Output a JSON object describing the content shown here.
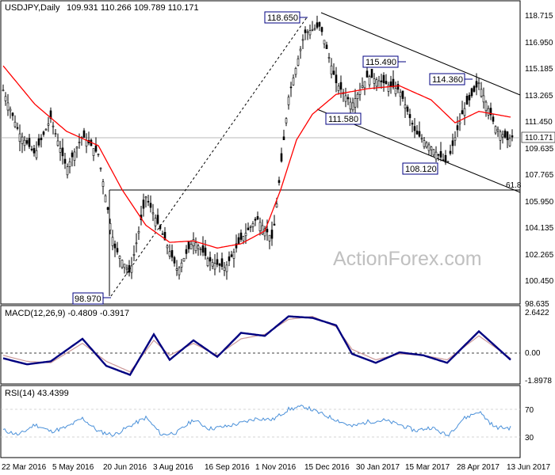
{
  "chart_data": [
    {
      "type": "candlestick",
      "title": "USDJPY,Daily",
      "ohlc_label": "109.931 110.266 109.789 110.171",
      "y_ticks": [
        "118.715",
        "116.950",
        "115.185",
        "113.265",
        "111.450",
        "109.635",
        "107.765",
        "105.950",
        "104.135",
        "102.265",
        "100.450",
        "98.635"
      ],
      "last_price": "110.171",
      "watermark": "ActionForex.com",
      "annotations": {
        "high_1": "118.650",
        "high_2": "115.490",
        "high_3": "114.360",
        "low_1": "111.580",
        "low_2": "108.120",
        "low_0": "98.970",
        "fib": "61.8"
      },
      "series": [
        {
          "name": "price",
          "x": [
            0,
            20,
            40,
            60,
            80,
            100,
            120,
            140,
            160,
            180,
            200,
            220,
            240,
            260,
            280,
            300,
            320,
            340,
            360,
            380,
            400,
            420,
            440,
            460,
            480,
            500,
            520,
            540,
            560,
            580,
            600,
            620,
            636,
            642
          ],
          "values": [
            113.5,
            110.5,
            109.0,
            111.5,
            108.0,
            110.3,
            109.0,
            102.5,
            100.6,
            106.0,
            103.5,
            100.8,
            103.0,
            101.5,
            101.0,
            103.0,
            104.5,
            103.0,
            113.0,
            117.5,
            118.0,
            114.0,
            112.5,
            114.5,
            114.0,
            113.5,
            110.5,
            109.5,
            108.3,
            112.0,
            114.0,
            111.0,
            110.0,
            110.2
          ]
        },
        {
          "name": "ma",
          "x": [
            0,
            40,
            80,
            120,
            150,
            180,
            210,
            240,
            270,
            300,
            330,
            350,
            370,
            390,
            420,
            460,
            500,
            540,
            570,
            600,
            640
          ],
          "values": [
            115.2,
            112.5,
            110.6,
            109.6,
            106.5,
            104.0,
            102.8,
            102.9,
            102.4,
            102.7,
            103.6,
            106.5,
            110.0,
            111.8,
            113.2,
            113.6,
            113.8,
            112.8,
            111.2,
            112.0,
            111.6
          ]
        }
      ]
    },
    {
      "type": "line",
      "title": "MACD(12,26,9) -0.4809 -0.3917",
      "y_ticks": [
        "2.6422",
        "0.00",
        "-1.8978"
      ],
      "series": [
        {
          "name": "macd",
          "x": [
            0,
            30,
            60,
            100,
            130,
            160,
            190,
            210,
            240,
            270,
            300,
            330,
            360,
            390,
            420,
            440,
            470,
            500,
            530,
            560,
            600,
            640
          ],
          "values": [
            -0.4,
            -0.8,
            -0.6,
            0.9,
            -0.9,
            -1.5,
            1.2,
            -0.5,
            0.8,
            -0.3,
            1.3,
            1.1,
            2.4,
            2.3,
            1.8,
            -0.1,
            -0.7,
            0.0,
            -0.2,
            -0.7,
            1.4,
            -0.5
          ]
        },
        {
          "name": "signal",
          "x": [
            0,
            30,
            60,
            100,
            130,
            160,
            190,
            210,
            240,
            270,
            300,
            330,
            360,
            390,
            420,
            440,
            470,
            500,
            530,
            560,
            600,
            640
          ],
          "values": [
            -0.2,
            -0.6,
            -0.7,
            0.6,
            -0.6,
            -1.3,
            0.8,
            -0.2,
            0.6,
            -0.2,
            0.9,
            1.2,
            2.2,
            2.4,
            1.7,
            0.2,
            -0.5,
            -0.1,
            -0.2,
            -0.5,
            1.1,
            -0.4
          ]
        }
      ]
    },
    {
      "type": "line",
      "title": "RSI(14) 43.4399",
      "y_ticks": [
        "70",
        "30"
      ],
      "series": [
        {
          "name": "rsi",
          "x": [
            0,
            20,
            40,
            60,
            80,
            100,
            120,
            140,
            160,
            180,
            200,
            220,
            240,
            260,
            280,
            300,
            320,
            340,
            360,
            380,
            400,
            420,
            440,
            460,
            480,
            500,
            520,
            540,
            560,
            580,
            600,
            620,
            640
          ],
          "values": [
            40,
            33,
            48,
            38,
            44,
            57,
            38,
            33,
            46,
            58,
            33,
            37,
            55,
            42,
            45,
            50,
            57,
            55,
            70,
            74,
            64,
            55,
            45,
            52,
            54,
            48,
            39,
            44,
            32,
            56,
            67,
            44,
            43
          ]
        }
      ]
    }
  ],
  "x_axis": {
    "tick_labels": [
      "22 Mar 2016",
      "5 May 2016",
      "20 Jun 2016",
      "3 Aug 2016",
      "16 Sep 2016",
      "1 Nov 2016",
      "15 Dec 2016",
      "30 Jan 2017",
      "15 Mar 2017",
      "28 Apr 2017",
      "13 Jun 2017"
    ]
  },
  "colors": {
    "price": "#000000",
    "ma": "#ff0000",
    "macd": "#000080",
    "signal": "#cc9999",
    "rsi": "#4a90d9",
    "grid": "#c8c8c8",
    "annotation_bg": "#ffffff",
    "annotation_border": "#000080",
    "watermark": "#c0c0c0"
  }
}
